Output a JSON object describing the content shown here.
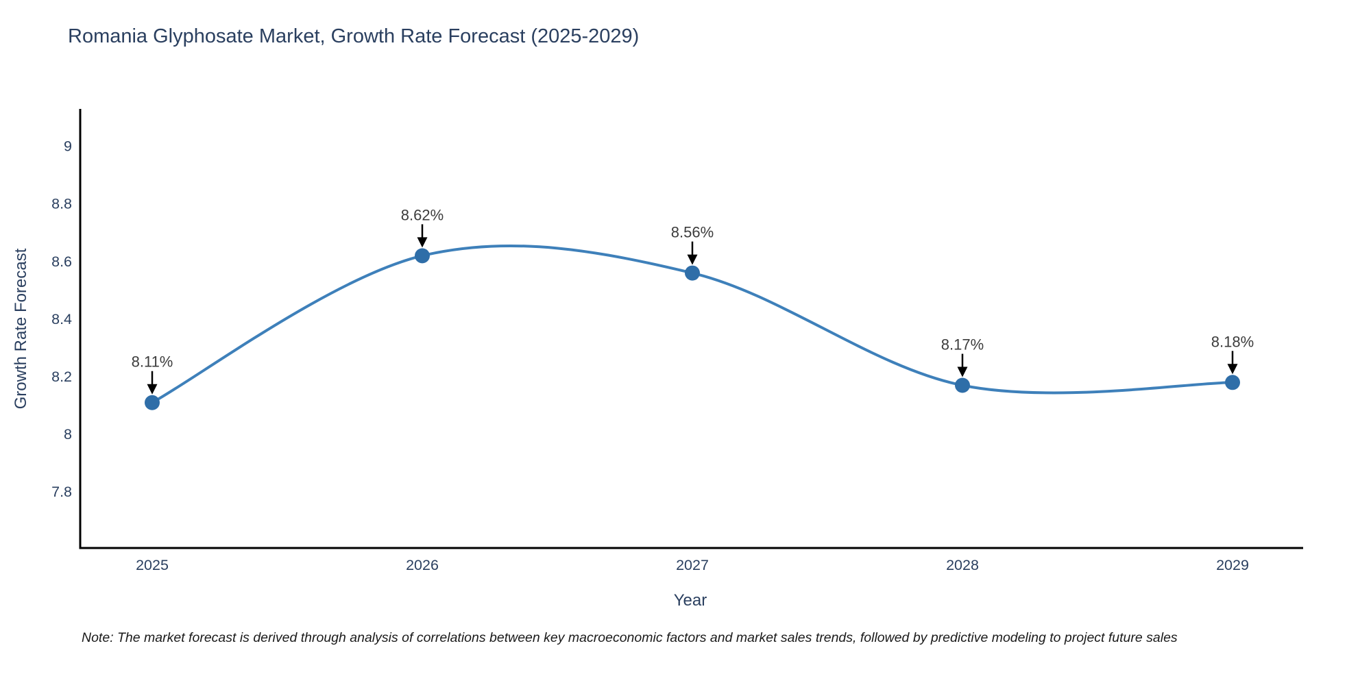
{
  "title": "Romania Glyphosate Market, Growth Rate Forecast (2025-2029)",
  "note": "Note: The market forecast is derived through analysis of correlations between key macroeconomic factors and market sales trends, followed by predictive modeling to project future sales",
  "chart_data": {
    "type": "line",
    "title": "Romania Glyphosate Market, Growth Rate Forecast (2025-2029)",
    "x": [
      "2025",
      "2026",
      "2027",
      "2028",
      "2029"
    ],
    "series": [
      {
        "name": "Growth Rate Forecast",
        "values": [
          8.11,
          8.62,
          8.56,
          8.17,
          8.18
        ]
      }
    ],
    "point_labels": [
      "8.11%",
      "8.62%",
      "8.56%",
      "8.17%",
      "8.18%"
    ],
    "xlabel": "Year",
    "ylabel": "Growth Rate Forecast",
    "yticks": [
      9,
      8.8,
      8.6,
      8.4,
      8.2,
      8,
      7.8
    ],
    "ylim": [
      7.605,
      9.13
    ],
    "grid": false,
    "legend": false,
    "line_shape": "spline",
    "colors": {
      "line": "#3e80ba",
      "marker": "#2f6ea8",
      "axis_line": "#000000",
      "tick_text": "#2a3f5f",
      "annotation_text": "#3c3c3c",
      "arrow": "#000000"
    }
  }
}
